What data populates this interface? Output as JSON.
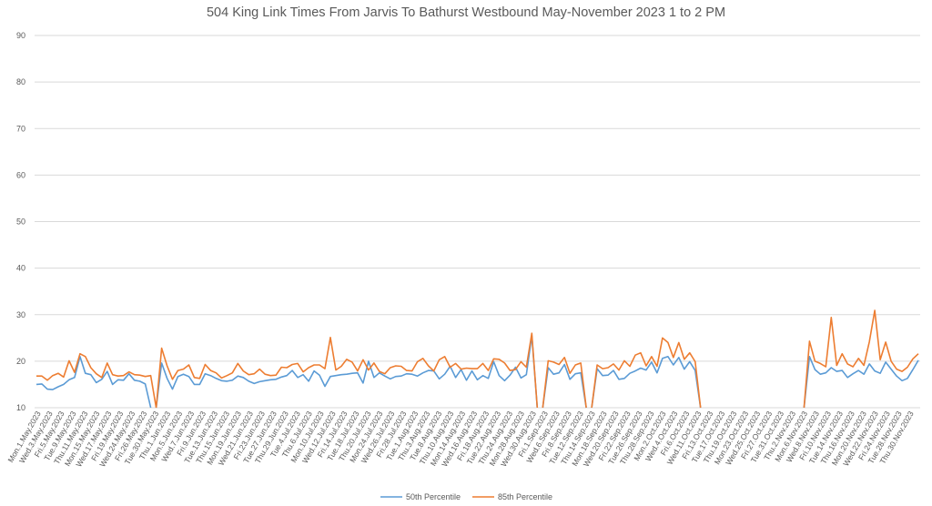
{
  "chart_data": {
    "type": "line",
    "title": "504 King Link Times From Jarvis To Bathurst Westbound May-November 2023 1 to 2 PM",
    "xlabel": "",
    "ylabel": "",
    "ylim": [
      10,
      90
    ],
    "yticks": [
      10,
      20,
      30,
      40,
      50,
      60,
      70,
      80,
      90
    ],
    "grid": true,
    "legend_position": "bottom",
    "x_tick_labels": [
      "Mon.1.May.2023",
      "Wed.3.May.2023",
      "Fri.5.May.2023",
      "Tue.9.May.2023",
      "Thu.11.May.2023",
      "Mon.15.May.2023",
      "Wed.17.May.2023",
      "Fri.19.May.2023",
      "Wed.24.May.2023",
      "Fri.26.May.2023",
      "Tue.30.May.2023",
      "Thu.1.Jun.2023",
      "Mon.5.Jun.2023",
      "Wed.7.Jun.2023",
      "Fri.9.Jun.2023",
      "Tue.13.Jun.2023",
      "Thu.15.Jun.2023",
      "Mon.19.Jun.2023",
      "Wed.21.Jun.2023",
      "Fri.23.Jun.2023",
      "Tue.27.Jun.2023",
      "Thu.29.Jun.2023",
      "Tue.4.Jul.2023",
      "Thu.6.Jul.2023",
      "Mon.10.Jul.2023",
      "Wed.12.Jul.2023",
      "Fri.14.Jul.2023",
      "Tue.18.Jul.2023",
      "Thu.20.Jul.2023",
      "Mon.24.Jul.2023",
      "Wed.26.Jul.2023",
      "Fri.28.Jul.2023",
      "Tue.1.Aug.2023",
      "Thu.3.Aug.2023",
      "Tue.8.Aug.2023",
      "Thu.10.Aug.2023",
      "Mon.14.Aug.2023",
      "Wed.16.Aug.2023",
      "Fri.18.Aug.2023",
      "Tue.22.Aug.2023",
      "Thu.24.Aug.2023",
      "Mon.28.Aug.2023",
      "Wed.30.Aug.2023",
      "Fri.1.Sep.2023",
      "Wed.6.Sep.2023",
      "Fri.8.Sep.2023",
      "Tue.12.Sep.2023",
      "Thu.14.Sep.2023",
      "Mon.18.Sep.2023",
      "Wed.20.Sep.2023",
      "Fri.22.Sep.2023",
      "Tue.26.Sep.2023",
      "Thu.28.Sep.2023",
      "Mon.2.Oct.2023",
      "Wed.4.Oct.2023",
      "Fri.6.Oct.2023",
      "Wed.11.Oct.2023",
      "Fri.13.Oct.2023",
      "Tue.17.Oct.2023",
      "Thu.19.Oct.2023",
      "Mon.23.Oct.2023",
      "Wed.25.Oct.2023",
      "Fri.27.Oct.2023",
      "Tue.31.Oct.2023",
      "Thu.2.Nov.2023",
      "Mon.6.Nov.2023",
      "Wed.8.Nov.2023",
      "Fri.10.Nov.2023",
      "Tue.14.Nov.2023",
      "Thu.16.Nov.2023",
      "Mon.20.Nov.2023",
      "Wed.22.Nov.2023",
      "Fri.24.Nov.2023",
      "Tue.28.Nov.2023",
      "Thu.30.Nov.2023"
    ],
    "series": [
      {
        "name": "50th Percentile",
        "color": "#5b9bd5",
        "values": [
          15,
          15.1,
          14,
          13.9,
          14.5,
          15,
          16,
          16.5,
          21,
          17.4,
          17.1,
          15.4,
          16.1,
          17.8,
          15,
          16,
          15.9,
          17.3,
          15.9,
          15.7,
          15.1,
          null,
          null,
          19.6,
          16.3,
          14,
          16.7,
          17.2,
          16.7,
          15,
          15,
          17.3,
          16.9,
          16.3,
          15.8,
          15.7,
          15.9,
          16.8,
          16.5,
          15.7,
          15.2,
          15.6,
          15.8,
          16,
          16.1,
          16.6,
          16.9,
          18,
          16.5,
          17.1,
          15.7,
          17.9,
          17,
          14.6,
          16.7,
          16.9,
          17.1,
          17.2,
          17.4,
          17.5,
          15.3,
          20,
          16.5,
          17.5,
          16.8,
          16.2,
          16.7,
          16.8,
          17.3,
          17.2,
          16.8,
          17.5,
          18,
          17.9,
          16.2,
          17.2,
          18.9,
          16.5,
          18.2,
          15.9,
          17.9,
          16,
          16.9,
          16.3,
          19.9,
          16.9,
          15.8,
          17,
          18.7,
          16.4,
          17.1,
          25.5,
          null,
          null,
          18.6,
          17.2,
          17.5,
          19.3,
          16.1,
          17.3,
          17.5,
          null,
          null,
          18.4,
          16.9,
          17,
          18,
          16.1,
          16.3,
          17.4,
          17.9,
          18.5,
          18.1,
          19.8,
          17.5,
          20.6,
          21,
          19.2,
          20.8,
          18.3,
          19.9,
          18,
          null,
          null,
          null,
          null,
          null,
          null,
          null,
          null,
          null,
          null,
          null,
          null,
          null,
          null,
          null,
          null,
          null,
          null,
          null,
          null,
          21,
          18.2,
          17.2,
          17.5,
          18.6,
          17.8,
          18,
          16.5,
          17.3,
          18,
          17.2,
          19.4,
          17.9,
          17.4,
          19.8,
          18.3,
          16.8,
          15.8,
          16.3,
          18.2,
          20.2
        ]
      },
      {
        "name": "85th Percentile",
        "color": "#ed7d31",
        "values": [
          16.8,
          16.8,
          15.9,
          16.9,
          17.4,
          16.6,
          20.1,
          17.6,
          21.6,
          21,
          18.6,
          17.3,
          16.5,
          19.6,
          17.1,
          16.8,
          16.9,
          17.7,
          17.1,
          17,
          16.7,
          16.9,
          null,
          22.8,
          19,
          16.1,
          18,
          18.3,
          19.2,
          16.5,
          16.3,
          19.3,
          18,
          17.5,
          16.4,
          16.9,
          17.5,
          19.5,
          17.9,
          17.1,
          17.3,
          18.3,
          17.2,
          16.9,
          17,
          18.7,
          18.6,
          19.3,
          19.5,
          17.7,
          18.6,
          19.2,
          19.2,
          18.4,
          25.1,
          18.1,
          18.9,
          20.4,
          19.8,
          17.9,
          20.3,
          18.1,
          19.6,
          17.8,
          17.3,
          18.6,
          19,
          18.9,
          18,
          17.9,
          19.9,
          20.6,
          19,
          17.9,
          20.3,
          21,
          18.7,
          19.5,
          18.3,
          18.5,
          18.4,
          18.4,
          19.5,
          18,
          20.5,
          20.4,
          19.6,
          18,
          18.2,
          19.9,
          18.7,
          26,
          null,
          null,
          20.1,
          19.8,
          19.3,
          20.8,
          17.4,
          19.2,
          19.6,
          null,
          null,
          19.2,
          18.4,
          18.6,
          19.4,
          18.1,
          20.1,
          18.9,
          21.3,
          21.8,
          19,
          21,
          18.9,
          25,
          24,
          20.8,
          24,
          20.4,
          21.8,
          19.9,
          null,
          null,
          null,
          null,
          null,
          null,
          null,
          null,
          null,
          null,
          null,
          null,
          null,
          null,
          null,
          null,
          null,
          null,
          null,
          null,
          24.3,
          20,
          19.5,
          18.8,
          29.4,
          19.1,
          21.6,
          19.4,
          18.8,
          20.6,
          19.1,
          24.2,
          30.9,
          20.3,
          24.1,
          20,
          18.3,
          17.8,
          18.7,
          20.5,
          21.6
        ]
      }
    ]
  }
}
